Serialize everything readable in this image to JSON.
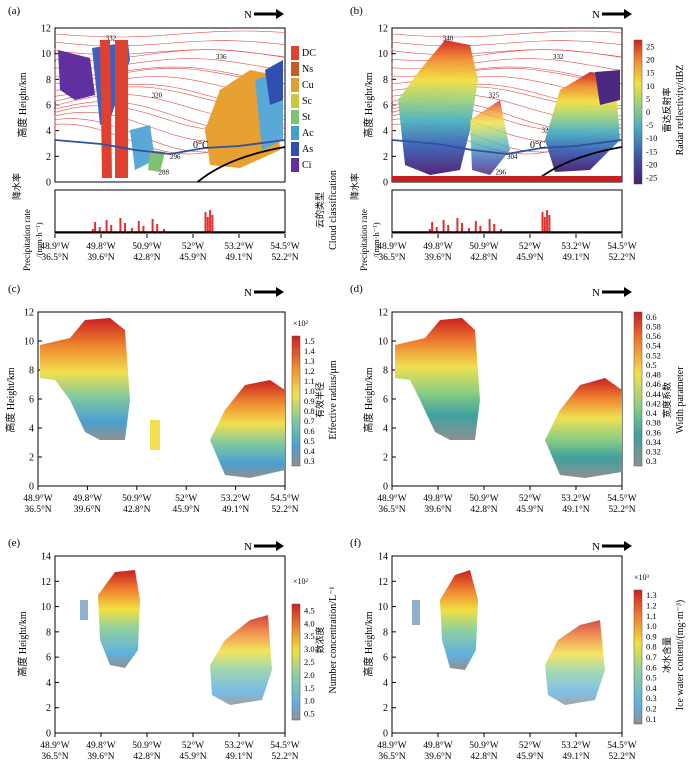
{
  "north": "N",
  "units": {
    "km": "km",
    "um": "μm",
    "ml": "m",
    "lon": "W",
    "lat": "N"
  },
  "shared": {
    "yticks_a": [
      "0",
      "2",
      "4",
      "6",
      "8",
      "10",
      "12"
    ],
    "yticks_c": [
      "0",
      "2",
      "4",
      "6",
      "8",
      "10",
      "12"
    ],
    "yticks_e": [
      "0",
      "2",
      "4",
      "6",
      "8",
      "10",
      "12",
      "14"
    ],
    "xticks_lon": [
      "48.9°W",
      "49.8°W",
      "50.9°W",
      "52°W",
      "53.2°W",
      "54.5°W"
    ],
    "xticks_lat": [
      "36.5°N",
      "39.6°N",
      "42.8°N",
      "45.9°N",
      "49.1°N",
      "52.2°N"
    ],
    "ylabel": "高度 Height/km",
    "precip_label_cn": "降水率",
    "precip_label_en": "Precipitation rate",
    "precip_unit": "/(mm·h⁻¹)",
    "iso_label": "0°C"
  },
  "panels": {
    "a": {
      "tag": "(a)",
      "cbar_title_cn": "云的类型",
      "cbar_title_en": "Cloud classification",
      "classes": [
        "DC",
        "Ns",
        "Cu",
        "Sc",
        "St",
        "Ac",
        "As",
        "Ci"
      ],
      "class_colors": [
        "#e04030",
        "#c85a28",
        "#e0a030",
        "#c8c840",
        "#80c070",
        "#40a0d0",
        "#3050b0",
        "#6030a0"
      ],
      "contour_labels": [
        "332",
        "336",
        "320",
        "304",
        "296",
        "288"
      ]
    },
    "b": {
      "tag": "(b)",
      "cbar_title_cn": "雷达反射率",
      "cbar_title_en": "Radar reflectivity/dBZ",
      "ticks": [
        "25",
        "20",
        "15",
        "10",
        "5",
        "0",
        "-5",
        "-10",
        "-15",
        "-20",
        "-25"
      ],
      "contour_labels": [
        "340",
        "332",
        "325",
        "320",
        "304",
        "296"
      ]
    },
    "c": {
      "tag": "(c)",
      "cbar_title_cn": "有效半径",
      "cbar_title_en": "Effective radius/μm",
      "scale": "×10²",
      "ticks": [
        "1.5",
        "1.4",
        "1.3",
        "1.2",
        "1.1",
        "1.0",
        "0.9",
        "0.8",
        "0.7",
        "0.6",
        "0.5",
        "0.4",
        "0.3"
      ]
    },
    "d": {
      "tag": "(d)",
      "cbar_title_cn": "宽度系数",
      "cbar_title_en": "Width parameter",
      "ticks": [
        "0.6",
        "0.58",
        "0.56",
        "0.54",
        "0.52",
        "0.5",
        "0.48",
        "0.46",
        "0.44",
        "0.42",
        "0.4",
        "0.38",
        "0.36",
        "0.34",
        "0.32",
        "0.3"
      ]
    },
    "e": {
      "tag": "(e)",
      "cbar_title_cn": "数浓度",
      "cbar_title_en": "Number concentration/L⁻¹",
      "scale": "×10²",
      "ticks": [
        "4.5",
        "4.0",
        "3.5",
        "3.0",
        "2.5",
        "2.0",
        "1.5",
        "1.0",
        "0.5"
      ]
    },
    "f": {
      "tag": "(f)",
      "cbar_title_cn": "冰水含量",
      "cbar_title_en": "Ice water content/(mg·m⁻³)",
      "scale": "×10³",
      "ticks": [
        "1.3",
        "1.2",
        "1.1",
        "1.0",
        "0.9",
        "0.8",
        "0.7",
        "0.6",
        "0.5",
        "0.4",
        "0.3",
        "0.2",
        "0.1"
      ]
    }
  },
  "chart_data": [
    {
      "panel": "a",
      "type": "heatmap",
      "title": "",
      "ylabel": "高度 Height/km",
      "ylim": [
        0,
        12
      ],
      "x": [
        "48.9°W 36.5°N",
        "49.8°W 39.6°N",
        "50.9°W 42.8°N",
        "52°W 45.9°N",
        "53.2°W 49.1°N",
        "54.5°W 52.2°N"
      ],
      "legend": [
        "DC",
        "Ns",
        "Cu",
        "Sc",
        "St",
        "Ac",
        "As",
        "Ci"
      ]
    },
    {
      "panel": "b",
      "type": "heatmap",
      "ylabel": "高度 Height/km",
      "ylim": [
        0,
        12
      ],
      "colorbar_range": [
        -25,
        25
      ]
    },
    {
      "panel": "c",
      "type": "heatmap",
      "ylabel": "高度 Height/km",
      "ylim": [
        0,
        12
      ],
      "colorbar_range": [
        0.3,
        1.5
      ]
    },
    {
      "panel": "d",
      "type": "heatmap",
      "ylabel": "高度 Height/km",
      "ylim": [
        0,
        12
      ],
      "colorbar_range": [
        0.3,
        0.6
      ]
    },
    {
      "panel": "e",
      "type": "heatmap",
      "ylabel": "高度 Height/km",
      "ylim": [
        0,
        14
      ],
      "colorbar_range": [
        0.5,
        4.5
      ]
    },
    {
      "panel": "f",
      "type": "heatmap",
      "ylabel": "高度 Height/km",
      "ylim": [
        0,
        14
      ],
      "colorbar_range": [
        0.1,
        1.3
      ]
    }
  ]
}
